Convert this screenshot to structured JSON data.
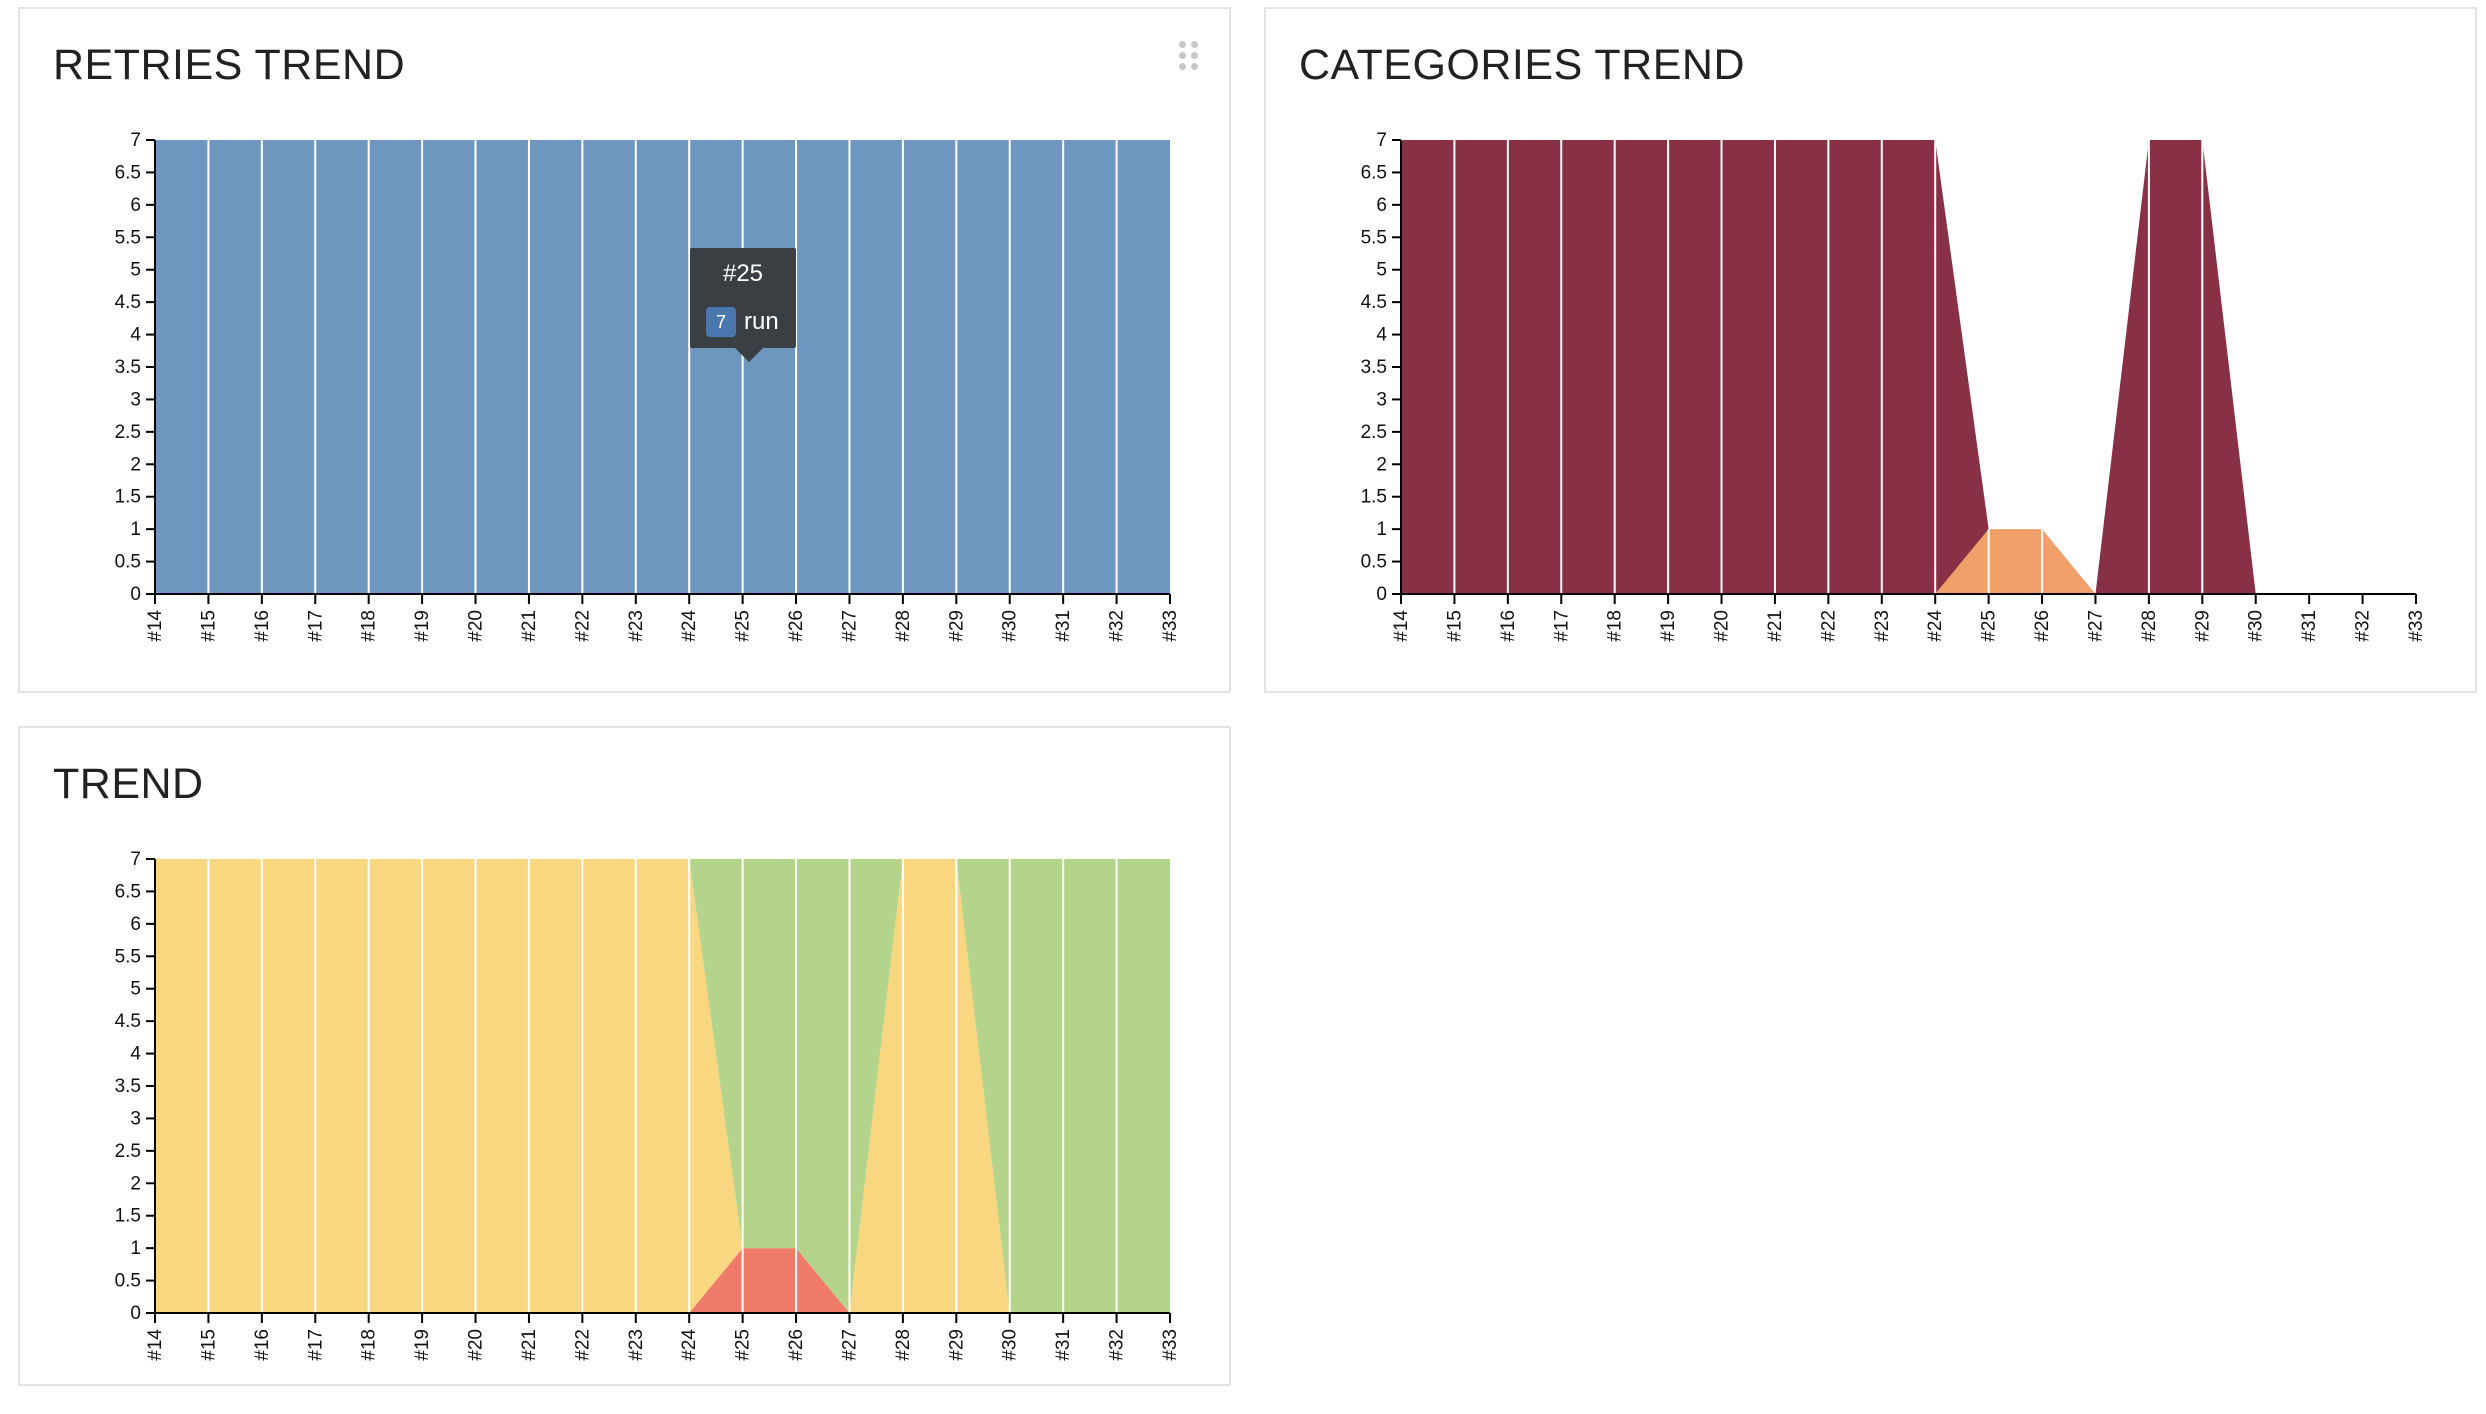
{
  "widgets": {
    "retries": {
      "title": "RETRIES TREND"
    },
    "categories": {
      "title": "CATEGORIES TREND"
    },
    "trend": {
      "title": "TREND"
    }
  },
  "tooltip": {
    "title": "#25",
    "badge": "7",
    "label": "run"
  },
  "colors": {
    "retries": "#6f96be",
    "product_defects": "#883045",
    "test_defects": "#f1a06a",
    "broken": "#f9d680",
    "passed": "#b4d38b",
    "failed": "#ef7b68"
  },
  "chart_data": [
    {
      "id": "retries",
      "type": "area",
      "categories": [
        "#14",
        "#15",
        "#16",
        "#17",
        "#18",
        "#19",
        "#20",
        "#21",
        "#22",
        "#23",
        "#24",
        "#25",
        "#26",
        "#27",
        "#28",
        "#29",
        "#30",
        "#31",
        "#32",
        "#33"
      ],
      "ylim": [
        0,
        7
      ],
      "yticks": [
        "0",
        "0.5",
        "1",
        "1.5",
        "2",
        "2.5",
        "3",
        "3.5",
        "4",
        "4.5",
        "5",
        "5.5",
        "6",
        "6.5",
        "7"
      ],
      "series": [
        {
          "color": "#6f96be",
          "values": [
            7,
            7,
            7,
            7,
            7,
            7,
            7,
            7,
            7,
            7,
            7,
            7,
            7,
            7,
            7,
            7,
            7,
            7,
            7,
            7
          ]
        }
      ]
    },
    {
      "id": "categories",
      "type": "area",
      "categories": [
        "#14",
        "#15",
        "#16",
        "#17",
        "#18",
        "#19",
        "#20",
        "#21",
        "#22",
        "#23",
        "#24",
        "#25",
        "#26",
        "#27",
        "#28",
        "#29",
        "#30",
        "#31",
        "#32",
        "#33"
      ],
      "ylim": [
        0,
        7
      ],
      "yticks": [
        "0",
        "0.5",
        "1",
        "1.5",
        "2",
        "2.5",
        "3",
        "3.5",
        "4",
        "4.5",
        "5",
        "5.5",
        "6",
        "6.5",
        "7"
      ],
      "series": [
        {
          "color": "#f1a06a",
          "values": [
            0,
            0,
            0,
            0,
            0,
            0,
            0,
            0,
            0,
            0,
            0,
            1,
            1,
            0,
            0,
            0,
            0,
            0,
            0,
            0
          ]
        },
        {
          "color": "#883045",
          "values": [
            7,
            7,
            7,
            7,
            7,
            7,
            7,
            7,
            7,
            7,
            7,
            0,
            0,
            0,
            7,
            7,
            0,
            0,
            0,
            0
          ]
        }
      ]
    },
    {
      "id": "trend",
      "type": "area",
      "categories": [
        "#14",
        "#15",
        "#16",
        "#17",
        "#18",
        "#19",
        "#20",
        "#21",
        "#22",
        "#23",
        "#24",
        "#25",
        "#26",
        "#27",
        "#28",
        "#29",
        "#30",
        "#31",
        "#32",
        "#33"
      ],
      "ylim": [
        0,
        7
      ],
      "yticks": [
        "0",
        "0.5",
        "1",
        "1.5",
        "2",
        "2.5",
        "3",
        "3.5",
        "4",
        "4.5",
        "5",
        "5.5",
        "6",
        "6.5",
        "7"
      ],
      "series": [
        {
          "color": "#ef7b68",
          "values": [
            0,
            0,
            0,
            0,
            0,
            0,
            0,
            0,
            0,
            0,
            0,
            1,
            1,
            0,
            0,
            0,
            0,
            0,
            0,
            0
          ]
        },
        {
          "color": "#f9d680",
          "values": [
            7,
            7,
            7,
            7,
            7,
            7,
            7,
            7,
            7,
            7,
            7,
            0,
            0,
            0,
            7,
            7,
            0,
            0,
            0,
            0
          ]
        },
        {
          "color": "#b4d38b",
          "values": [
            0,
            0,
            0,
            0,
            0,
            0,
            0,
            0,
            0,
            0,
            0,
            6,
            6,
            7,
            0,
            0,
            7,
            7,
            7,
            7
          ]
        }
      ]
    }
  ]
}
